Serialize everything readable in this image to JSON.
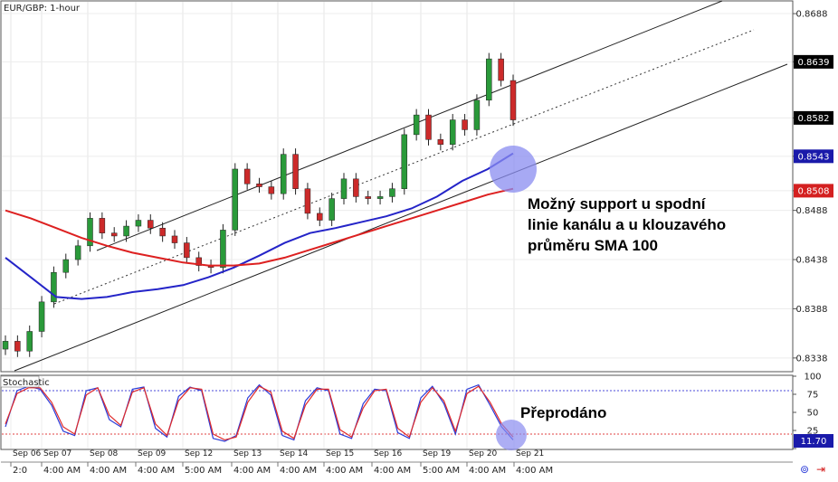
{
  "chart_data": [
    {
      "type": "candlestick",
      "title": "EUR/GBP: 1-hour",
      "price_axis_ticks": [
        0.8688,
        0.8639,
        0.8582,
        0.8543,
        0.8508,
        0.8488,
        0.8438,
        0.8388,
        0.8338
      ],
      "ylim": [
        0.8325,
        0.87
      ],
      "price_badges": [
        {
          "value": "0.8639",
          "color": "#000000"
        },
        {
          "value": "0.8582",
          "color": "#000000"
        },
        {
          "value": "0.8543",
          "color": "#1a1aaa"
        },
        {
          "value": "0.8508",
          "color": "#d42020"
        }
      ],
      "series": [
        {
          "name": "SMA 100",
          "color": "#2424c8",
          "values": [
            0.844,
            0.842,
            0.84,
            0.8398,
            0.84,
            0.8405,
            0.8408,
            0.8412,
            0.842,
            0.843,
            0.8442,
            0.8455,
            0.8465,
            0.847,
            0.8476,
            0.8482,
            0.849,
            0.8502,
            0.8518,
            0.853,
            0.8546
          ]
        },
        {
          "name": "SMA 200",
          "color": "#dd2020",
          "values": [
            0.8488,
            0.848,
            0.847,
            0.846,
            0.8452,
            0.8445,
            0.844,
            0.8435,
            0.8432,
            0.8432,
            0.8434,
            0.844,
            0.8448,
            0.8456,
            0.8464,
            0.8472,
            0.848,
            0.8488,
            0.8496,
            0.8504,
            0.851
          ]
        },
        {
          "name": "Close",
          "color": "#111111",
          "values": [
            0.8355,
            0.8345,
            0.8365,
            0.8395,
            0.8425,
            0.8438,
            0.8452,
            0.848,
            0.8465,
            0.8462,
            0.8472,
            0.8478,
            0.847,
            0.8462,
            0.8455,
            0.844,
            0.8432,
            0.843,
            0.8468,
            0.853,
            0.8515,
            0.8512,
            0.8505,
            0.8545,
            0.851,
            0.8485,
            0.8478,
            0.85,
            0.852,
            0.8502,
            0.85,
            0.8502,
            0.851,
            0.8565,
            0.8585,
            0.856,
            0.8555,
            0.858,
            0.857,
            0.86,
            0.8642,
            0.862,
            0.858
          ]
        }
      ],
      "annotations": [
        "Možný support u spodní",
        "linie kanálu a u klouzavého",
        "průměru SMA 100"
      ]
    },
    {
      "type": "line",
      "title": "Stochastic",
      "ylim": [
        0,
        100
      ],
      "y_ticks": [
        100,
        75,
        50,
        25,
        0
      ],
      "levels": [
        80,
        20
      ],
      "current_value": "11.70",
      "series": [
        {
          "name": "%K",
          "color": "#2a3ad8",
          "values": [
            30,
            80,
            86,
            82,
            60,
            24,
            18,
            80,
            84,
            40,
            30,
            82,
            85,
            28,
            16,
            72,
            85,
            80,
            14,
            10,
            18,
            70,
            88,
            74,
            18,
            12,
            66,
            84,
            80,
            20,
            14,
            62,
            82,
            80,
            22,
            14,
            70,
            86,
            62,
            20,
            82,
            88,
            60,
            30,
            12
          ]
        },
        {
          "name": "%D",
          "color": "#e02a2a",
          "values": [
            34,
            76,
            84,
            84,
            64,
            30,
            20,
            74,
            84,
            46,
            32,
            78,
            84,
            34,
            18,
            66,
            84,
            82,
            20,
            12,
            16,
            64,
            86,
            78,
            24,
            14,
            60,
            82,
            82,
            26,
            16,
            56,
            80,
            82,
            28,
            16,
            64,
            84,
            66,
            24,
            76,
            86,
            64,
            34,
            16
          ]
        }
      ],
      "annotation": "Přeprodáno"
    }
  ],
  "x_axis": {
    "dates": [
      "Sep 06",
      "Sep 07",
      "Sep 08",
      "Sep 09",
      "Sep 12",
      "Sep 13",
      "Sep 14",
      "Sep 15",
      "Sep 16",
      "Sep 19",
      "Sep 20",
      "Sep 21"
    ],
    "times": [
      "2:0",
      "4:00 AM",
      "4:00 AM",
      "4:00 AM",
      "5:00 AM",
      "4:00 AM",
      "4:00 AM",
      "4:00 AM",
      "4:00 AM",
      "5:00 AM",
      "4:00 AM",
      "4:00 AM"
    ]
  }
}
